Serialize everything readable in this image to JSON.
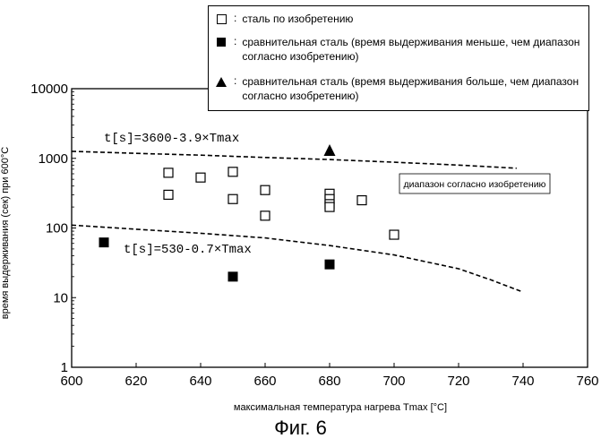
{
  "figure_caption": "Фиг. 6",
  "chart_data": {
    "type": "scatter",
    "xlabel": "максимальная температура нагрева Tmax [°C]",
    "ylabel": "время выдерживания (сек) при 600°C",
    "xlim": [
      600,
      760
    ],
    "ylim": [
      1,
      10000
    ],
    "y_scale": "log",
    "x_ticks": [
      "600",
      "620",
      "640",
      "660",
      "680",
      "700",
      "720",
      "740",
      "760"
    ],
    "y_ticks": [
      "1",
      "10",
      "100",
      "1000",
      "10000"
    ],
    "legend_position": "top-right",
    "legend": [
      {
        "marker": "open-square",
        "text": "сталь по изобретению"
      },
      {
        "marker": "filled-square",
        "text": "сравнительная сталь (время выдерживания меньше, чем диапазон согласно изобретению)"
      },
      {
        "marker": "filled-triangle",
        "text": "сравнительная сталь (время выдерживания больше, чем диапазон согласно изобретению)"
      }
    ],
    "series": [
      {
        "name": "сталь по изобретению",
        "marker": "open-square",
        "x": [
          630,
          630,
          640,
          650,
          650,
          660,
          660,
          680,
          680,
          680,
          680,
          690,
          700
        ],
        "y": [
          620,
          300,
          530,
          640,
          260,
          350,
          150,
          310,
          260,
          220,
          200,
          250,
          80
        ]
      },
      {
        "name": "сравнительная сталь (время выдерживания меньше, чем диапазон согласно изобретению)",
        "marker": "filled-square",
        "x": [
          610,
          650,
          680
        ],
        "y": [
          62,
          20,
          30
        ]
      },
      {
        "name": "сравнительная сталь (время выдерживания больше, чем диапазон согласно изобретению)",
        "marker": "filled-triangle",
        "x": [
          680
        ],
        "y": [
          1260
        ]
      }
    ],
    "curves": [
      {
        "label": "t[s]=3600-3.9×Tmax",
        "style": "dashed",
        "x": [
          600,
          620,
          640,
          660,
          680,
          700,
          720,
          738
        ],
        "y": [
          1260,
          1180,
          1110,
          1030,
          960,
          880,
          800,
          720
        ]
      },
      {
        "label": "t[s]=530-0.7×Tmax",
        "style": "dashed",
        "x": [
          600,
          620,
          640,
          660,
          680,
          700,
          720,
          730,
          740
        ],
        "y": [
          110,
          96,
          84,
          72,
          56,
          41,
          26,
          18,
          12
        ]
      }
    ],
    "annotation": "диапазон согласно изобретению"
  }
}
